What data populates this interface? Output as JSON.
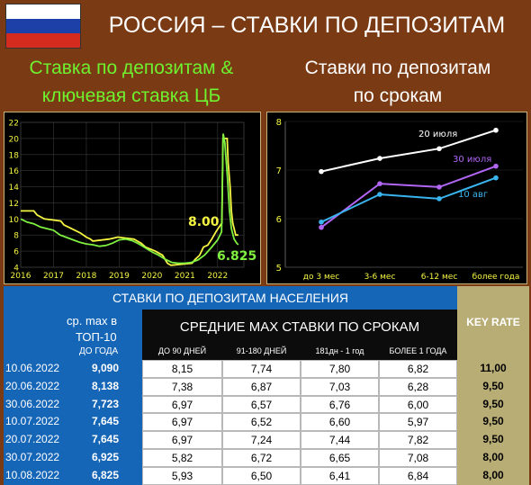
{
  "title": "РОССИЯ – СТАВКИ ПО ДЕПОЗИТАМ",
  "flag_colors": [
    "#ffffff",
    "#1c3fa8",
    "#d52b1e"
  ],
  "subtitle_left": [
    "Ставка по депозитам &",
    "ключевая ставка ЦБ"
  ],
  "subtitle_right": [
    "Ставки по депозитам",
    "по срокам"
  ],
  "chart_data": [
    {
      "type": "line",
      "title": "",
      "xlim": [
        2016,
        2022.8
      ],
      "ylim": [
        4,
        22
      ],
      "yticks": [
        4,
        6,
        8,
        10,
        12,
        14,
        16,
        18,
        20,
        22
      ],
      "xticks": [
        "2016",
        "2017",
        "2018",
        "2019",
        "2020",
        "2021",
        "2022"
      ],
      "grid": true,
      "annotations": [
        {
          "text": "8.00",
          "color": "#f5f542"
        },
        {
          "text": "6.825",
          "color": "#7ff040"
        }
      ],
      "series": [
        {
          "color": "#f5f542",
          "points": [
            [
              2016.0,
              11.0
            ],
            [
              2016.4,
              11.0
            ],
            [
              2016.5,
              10.5
            ],
            [
              2016.72,
              10.0
            ],
            [
              2017.22,
              9.75
            ],
            [
              2017.32,
              9.25
            ],
            [
              2017.45,
              9.0
            ],
            [
              2017.7,
              8.5
            ],
            [
              2017.82,
              8.25
            ],
            [
              2018.0,
              7.75
            ],
            [
              2018.12,
              7.5
            ],
            [
              2018.2,
              7.25
            ],
            [
              2018.7,
              7.5
            ],
            [
              2018.96,
              7.75
            ],
            [
              2019.45,
              7.5
            ],
            [
              2019.55,
              7.25
            ],
            [
              2019.67,
              7.0
            ],
            [
              2019.8,
              6.5
            ],
            [
              2019.96,
              6.25
            ],
            [
              2020.1,
              6.0
            ],
            [
              2020.32,
              5.5
            ],
            [
              2020.47,
              4.5
            ],
            [
              2020.58,
              4.25
            ],
            [
              2021.22,
              4.5
            ],
            [
              2021.32,
              5.0
            ],
            [
              2021.45,
              5.5
            ],
            [
              2021.57,
              6.5
            ],
            [
              2021.7,
              6.75
            ],
            [
              2021.82,
              7.5
            ],
            [
              2021.96,
              8.5
            ],
            [
              2022.13,
              9.5
            ],
            [
              2022.16,
              20.0
            ],
            [
              2022.29,
              20.0
            ],
            [
              2022.32,
              17.0
            ],
            [
              2022.38,
              14.0
            ],
            [
              2022.42,
              11.0
            ],
            [
              2022.46,
              9.5
            ],
            [
              2022.55,
              8.0
            ],
            [
              2022.63,
              8.0
            ]
          ]
        },
        {
          "color": "#7ff040",
          "points": [
            [
              2016.0,
              10.0
            ],
            [
              2016.2,
              9.6
            ],
            [
              2016.4,
              9.4
            ],
            [
              2016.6,
              9.0
            ],
            [
              2016.8,
              8.8
            ],
            [
              2017.0,
              8.6
            ],
            [
              2017.2,
              8.0
            ],
            [
              2017.4,
              7.7
            ],
            [
              2017.6,
              7.4
            ],
            [
              2017.8,
              7.1
            ],
            [
              2018.0,
              6.9
            ],
            [
              2018.2,
              6.8
            ],
            [
              2018.4,
              6.6
            ],
            [
              2018.6,
              6.7
            ],
            [
              2018.8,
              7.0
            ],
            [
              2019.0,
              7.4
            ],
            [
              2019.2,
              7.5
            ],
            [
              2019.4,
              7.3
            ],
            [
              2019.6,
              6.9
            ],
            [
              2019.8,
              6.4
            ],
            [
              2020.0,
              5.9
            ],
            [
              2020.2,
              5.5
            ],
            [
              2020.4,
              5.0
            ],
            [
              2020.6,
              4.6
            ],
            [
              2020.8,
              4.5
            ],
            [
              2021.0,
              4.5
            ],
            [
              2021.2,
              4.6
            ],
            [
              2021.4,
              4.9
            ],
            [
              2021.6,
              5.5
            ],
            [
              2021.8,
              6.4
            ],
            [
              2022.0,
              7.4
            ],
            [
              2022.12,
              8.4
            ],
            [
              2022.17,
              20.6
            ],
            [
              2022.22,
              19.5
            ],
            [
              2022.3,
              15.0
            ],
            [
              2022.36,
              11.0
            ],
            [
              2022.42,
              8.8
            ],
            [
              2022.5,
              7.5
            ],
            [
              2022.58,
              7.0
            ],
            [
              2022.63,
              6.8
            ]
          ]
        }
      ]
    },
    {
      "type": "line",
      "title": "",
      "categories": [
        "до 3 мес",
        "3-6 мес",
        "6-12 мес",
        "более года"
      ],
      "ylim": [
        5,
        8
      ],
      "yticks": [
        5,
        6,
        7,
        8
      ],
      "series": [
        {
          "name": "20 июля",
          "color": "#ffffff",
          "values": [
            6.97,
            7.24,
            7.44,
            7.82
          ]
        },
        {
          "name": "30 июля",
          "color": "#b266f5",
          "values": [
            5.82,
            6.72,
            6.65,
            7.08
          ]
        },
        {
          "name": "10 авг",
          "color": "#39b4ee",
          "values": [
            5.93,
            6.5,
            6.41,
            6.84
          ]
        }
      ]
    },
    {
      "type": "table",
      "title": "СТАВКИ ПО ДЕПОЗИТАМ НАСЕЛЕНИЯ",
      "header_max": [
        "ср. max в",
        "ТОП-10",
        "ДО ГОДА"
      ],
      "header_terms": "СРЕДНИЕ МАХ СТАВКИ ПО СРОКАМ",
      "header_key": "KEY RATE",
      "columns": [
        "ДО 90 ДНЕЙ",
        "91-180 ДНЕЙ",
        "181дн - 1 год",
        "БОЛЕЕ 1 ГОДА"
      ],
      "rows": [
        {
          "date": "10.06.2022",
          "max": "9,090",
          "cells": [
            "8,15",
            "7,74",
            "7,80",
            "6,82"
          ],
          "key": "11,00"
        },
        {
          "date": "20.06.2022",
          "max": "8,138",
          "cells": [
            "7,38",
            "6,87",
            "7,03",
            "6,28"
          ],
          "key": "9,50"
        },
        {
          "date": "30.06.2022",
          "max": "7,723",
          "cells": [
            "6,97",
            "6,57",
            "6,76",
            "6,00"
          ],
          "key": "9,50"
        },
        {
          "date": "10.07.2022",
          "max": "7,645",
          "cells": [
            "6,97",
            "6,52",
            "6,60",
            "5,97"
          ],
          "key": "9,50"
        },
        {
          "date": "20.07.2022",
          "max": "7,645",
          "cells": [
            "6,97",
            "7,24",
            "7,44",
            "7,82"
          ],
          "key": "9,50"
        },
        {
          "date": "30.07.2022",
          "max": "6,925",
          "cells": [
            "5,82",
            "6,72",
            "6,65",
            "7,08"
          ],
          "key": "8,00"
        },
        {
          "date": "10.08.2022",
          "max": "6,825",
          "cells": [
            "5,93",
            "6,50",
            "6,41",
            "6,84"
          ],
          "key": "8,00"
        }
      ]
    }
  ]
}
